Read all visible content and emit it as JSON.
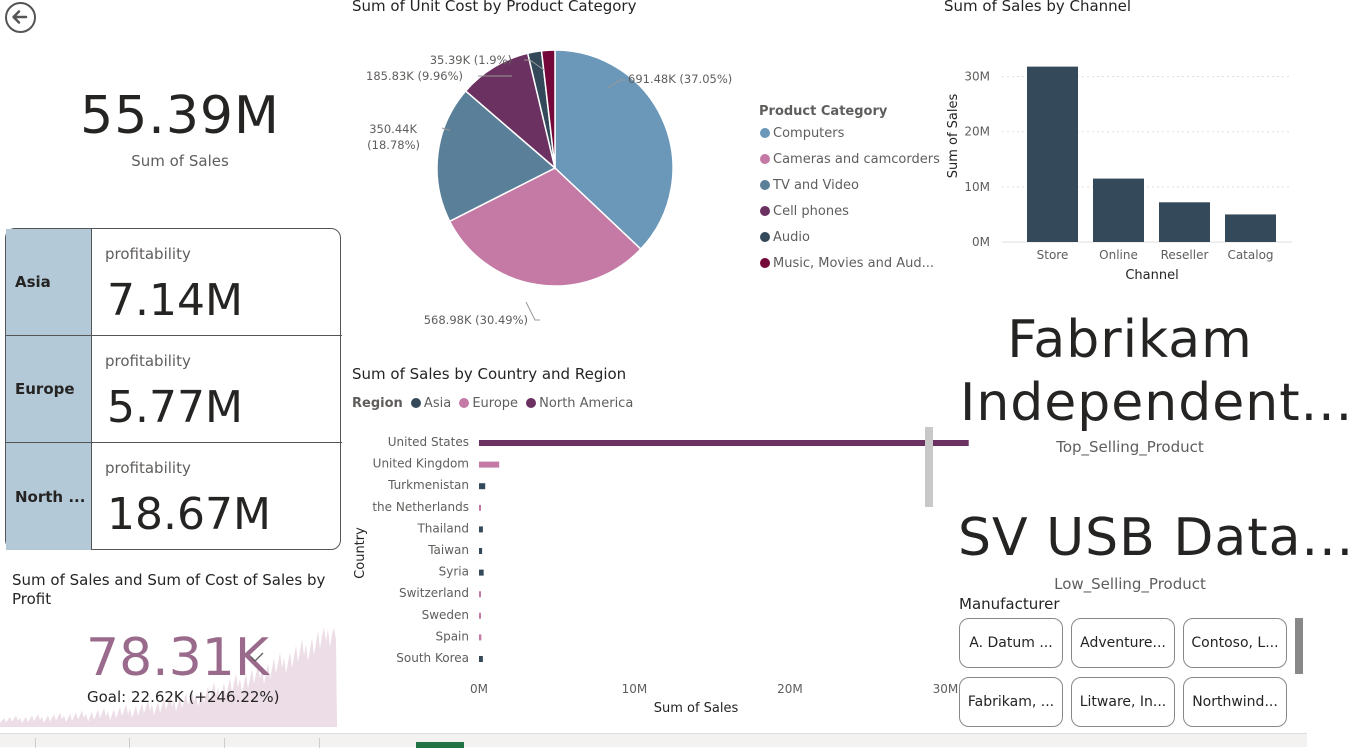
{
  "nav": {
    "back_icon": "arrow-left-circle-icon"
  },
  "kpi_sales": {
    "value": "55.39M",
    "label": "Sum of Sales"
  },
  "profit_card": {
    "rows": [
      {
        "region": "Asia",
        "label": "profitability",
        "value": "7.14M"
      },
      {
        "region": "Europe",
        "label": "profitability",
        "value": "5.77M"
      },
      {
        "region": "North ...",
        "label": "profitability",
        "value": "18.67M"
      }
    ]
  },
  "kpi_goal": {
    "title": "Sum of Sales and Sum of Cost of Sales by Profit",
    "value": "78.31K",
    "goal": "Goal: 22.62K (+246.22%)",
    "check_icon": "check-icon",
    "value_color": "#9a6a8c"
  },
  "pie_chart": {
    "title": "Sum of Unit Cost by Product Category",
    "legend_title": "Product Category",
    "chart_data": {
      "type": "pie",
      "title": "Sum of Unit Cost by Product Category",
      "slices": [
        {
          "name": "Computers",
          "value": 691.48,
          "label": "691.48K (37.05%)",
          "color": "#6b97b8"
        },
        {
          "name": "Cameras and camcorders",
          "value": 568.98,
          "label": "568.98K (30.49%)",
          "color": "#c47aa5"
        },
        {
          "name": "TV and Video",
          "value": 350.44,
          "label": "350.44K (18.78%)",
          "color": "#5a7f99"
        },
        {
          "name": "Cell phones",
          "value": 185.83,
          "label": "185.83K (9.96%)",
          "color": "#6b3160"
        },
        {
          "name": "Audio",
          "value": 35.39,
          "label": "35.39K (1.9%)",
          "color": "#33495a"
        },
        {
          "name": "Music, Movies and Aud...",
          "value": 34.0,
          "label": "",
          "color": "#74083a"
        }
      ]
    }
  },
  "channel_chart": {
    "title": "Sum of Sales by Channel",
    "chart_data": {
      "type": "bar",
      "title": "Sum of Sales by Channel",
      "xlabel": "Channel",
      "ylabel": "Sum of Sales",
      "categories": [
        "Store",
        "Online",
        "Reseller",
        "Catalog"
      ],
      "values": [
        31.8,
        11.5,
        7.2,
        5.0
      ],
      "ylim": [
        0,
        33
      ],
      "yticks": [
        "0M",
        "10M",
        "20M",
        "30M"
      ],
      "ytick_values": [
        0,
        10,
        20,
        30
      ],
      "color": "#34495a"
    }
  },
  "country_chart": {
    "title": "Sum of Sales by Country and Region",
    "legend_title": "Region",
    "legend": [
      {
        "name": "Asia",
        "color": "#34495a"
      },
      {
        "name": "Europe",
        "color": "#c47aa5"
      },
      {
        "name": "North America",
        "color": "#6b3160"
      }
    ],
    "chart_data": {
      "type": "bar",
      "orientation": "horizontal",
      "title": "Sum of Sales by Country and Region",
      "xlabel": "Sum of Sales",
      "ylabel": "Country",
      "xlim": [
        0,
        34
      ],
      "xticks": [
        "0M",
        "10M",
        "20M",
        "30M"
      ],
      "xtick_values": [
        0,
        10,
        20,
        30
      ],
      "categories": [
        "United States",
        "United Kingdom",
        "Turkmenistan",
        "the Netherlands",
        "Thailand",
        "Taiwan",
        "Syria",
        "Switzerland",
        "Sweden",
        "Spain",
        "South Korea"
      ],
      "values": [
        31.5,
        1.3,
        0.4,
        0.1,
        0.25,
        0.2,
        0.3,
        0.1,
        0.1,
        0.15,
        0.25
      ],
      "regions": [
        "North America",
        "Europe",
        "Asia",
        "Europe",
        "Asia",
        "Asia",
        "Asia",
        "Europe",
        "Europe",
        "Europe",
        "Asia"
      ]
    }
  },
  "top_product": {
    "value": "Fabrikam Independent...",
    "line1": "Fabrikam",
    "line2": "Independent...",
    "label": "Top_Selling_Product"
  },
  "low_product": {
    "value": "SV USB Data...",
    "label": "Low_Selling_Product"
  },
  "manufacturer_slicer": {
    "title": "Manufacturer",
    "items": [
      "A. Datum ...",
      "Adventure...",
      "Contoso, L...",
      "Fabrikam, ...",
      "Litware, In...",
      "Northwind..."
    ]
  }
}
